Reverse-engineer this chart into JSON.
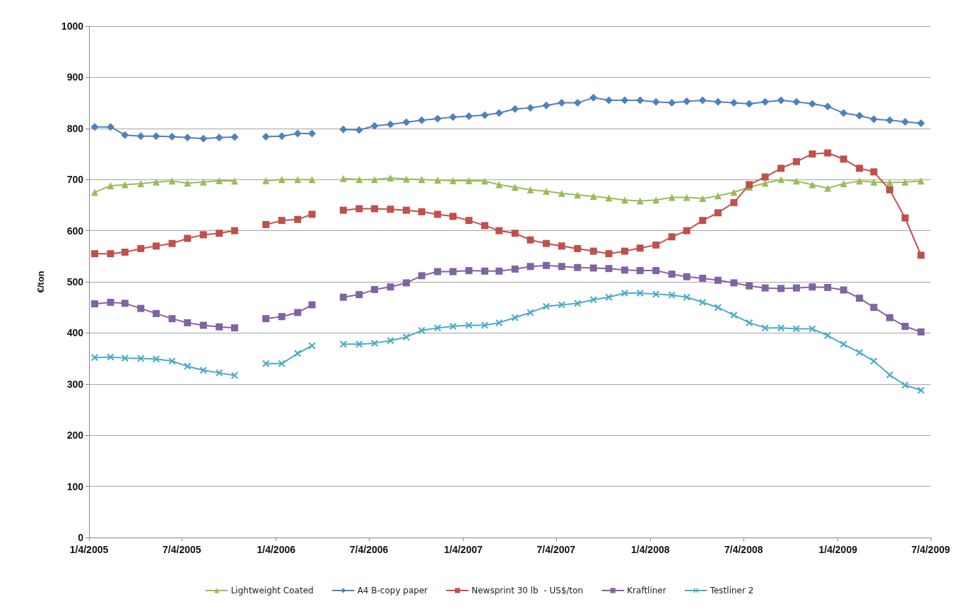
{
  "chart_data": {
    "type": "line",
    "ylabel": "€/ton",
    "ylim": [
      0,
      1000
    ],
    "yticks": [
      0,
      100,
      200,
      300,
      400,
      500,
      600,
      700,
      800,
      900,
      1000
    ],
    "xlim": [
      "2005-01-04",
      "2009-07-04"
    ],
    "xticks": [
      {
        "value": "2005-01-04",
        "label": "1/4/2005"
      },
      {
        "value": "2005-07-04",
        "label": "7/4/2005"
      },
      {
        "value": "2006-01-04",
        "label": "1/4/2006"
      },
      {
        "value": "2006-07-04",
        "label": "7/4/2006"
      },
      {
        "value": "2007-01-04",
        "label": "1/4/2007"
      },
      {
        "value": "2007-07-04",
        "label": "7/4/2007"
      },
      {
        "value": "2008-01-04",
        "label": "1/4/2008"
      },
      {
        "value": "2008-07-04",
        "label": "7/4/2008"
      },
      {
        "value": "2009-01-04",
        "label": "1/4/2009"
      },
      {
        "value": "2009-07-04",
        "label": "7/4/2009"
      }
    ],
    "x": [
      "2005-01-15",
      "2005-02-15",
      "2005-03-15",
      "2005-04-15",
      "2005-05-15",
      "2005-06-15",
      "2005-07-15",
      "2005-08-15",
      "2005-09-15",
      "2005-10-15",
      "2005-11-15",
      "2005-12-15",
      "2006-01-15",
      "2006-02-15",
      "2006-03-15",
      "2006-04-15",
      "2006-05-15",
      "2006-06-15",
      "2006-07-15",
      "2006-08-15",
      "2006-09-15",
      "2006-10-15",
      "2006-11-15",
      "2006-12-15",
      "2007-01-15",
      "2007-02-15",
      "2007-03-15",
      "2007-04-15",
      "2007-05-15",
      "2007-06-15",
      "2007-07-15",
      "2007-08-15",
      "2007-09-15",
      "2007-10-15",
      "2007-11-15",
      "2007-12-15",
      "2008-01-15",
      "2008-02-15",
      "2008-03-15",
      "2008-04-15",
      "2008-05-15",
      "2008-06-15",
      "2008-07-15",
      "2008-08-15",
      "2008-09-15",
      "2008-10-15",
      "2008-11-15",
      "2008-12-15",
      "2009-01-15",
      "2009-02-15",
      "2009-03-15",
      "2009-04-15",
      "2009-05-15",
      "2009-06-15"
    ],
    "grid": "y",
    "legend": "bottom",
    "line_style": "solid",
    "series": [
      {
        "name": "Lightweight Coated",
        "color": "#9bbb59",
        "marker": "triangle",
        "values": [
          675,
          688,
          690,
          692,
          695,
          697,
          693,
          695,
          698,
          697,
          null,
          698,
          700,
          700,
          700,
          null,
          702,
          700,
          700,
          703,
          701,
          700,
          699,
          698,
          698,
          697,
          690,
          685,
          680,
          677,
          673,
          670,
          667,
          664,
          660,
          658,
          660,
          665,
          665,
          663,
          668,
          675,
          685,
          693,
          700,
          697,
          690,
          683,
          692,
          697,
          695,
          694,
          695,
          697
        ]
      },
      {
        "name": "A4 B-copy paper",
        "color": "#4f81bd",
        "marker": "diamond",
        "values": [
          803,
          803,
          787,
          785,
          785,
          784,
          782,
          780,
          782,
          783,
          null,
          784,
          785,
          790,
          790,
          null,
          798,
          797,
          805,
          808,
          812,
          816,
          819,
          822,
          824,
          826,
          830,
          838,
          840,
          845,
          850,
          850,
          860,
          855,
          855,
          855,
          852,
          850,
          853,
          855,
          852,
          850,
          848,
          852,
          855,
          852,
          848,
          843,
          830,
          825,
          818,
          816,
          813,
          810
        ]
      },
      {
        "name": "Newsprint 30 lb  - US$/ton",
        "color": "#c0504d",
        "marker": "square",
        "values": [
          555,
          555,
          558,
          565,
          570,
          575,
          585,
          592,
          595,
          600,
          null,
          612,
          620,
          622,
          632,
          null,
          640,
          643,
          643,
          642,
          640,
          637,
          632,
          628,
          620,
          610,
          600,
          595,
          582,
          575,
          570,
          565,
          560,
          555,
          560,
          566,
          572,
          588,
          600,
          620,
          635,
          655,
          690,
          705,
          722,
          735,
          750,
          752,
          740,
          722,
          715,
          680,
          625,
          552
        ]
      },
      {
        "name": "Kraftliner",
        "color": "#8064a2",
        "marker": "square",
        "values": [
          457,
          460,
          458,
          448,
          438,
          428,
          420,
          415,
          412,
          410,
          null,
          428,
          432,
          440,
          455,
          null,
          470,
          475,
          485,
          490,
          498,
          512,
          520,
          520,
          522,
          521,
          521,
          525,
          530,
          532,
          530,
          528,
          527,
          526,
          523,
          522,
          522,
          515,
          510,
          507,
          503,
          498,
          492,
          488,
          487,
          488,
          490,
          489,
          484,
          468,
          450,
          430,
          413,
          402
        ]
      },
      {
        "name": "Testliner 2",
        "color": "#4bacc6",
        "marker": "cross",
        "values": [
          352,
          353,
          351,
          350,
          349,
          345,
          335,
          327,
          322,
          317,
          null,
          340,
          340,
          360,
          375,
          null,
          378,
          378,
          380,
          385,
          392,
          405,
          410,
          413,
          415,
          415,
          420,
          430,
          440,
          452,
          455,
          458,
          465,
          470,
          478,
          478,
          476,
          474,
          470,
          460,
          450,
          435,
          420,
          410,
          410,
          408,
          408,
          395,
          378,
          362,
          345,
          318,
          298,
          288
        ]
      }
    ]
  }
}
